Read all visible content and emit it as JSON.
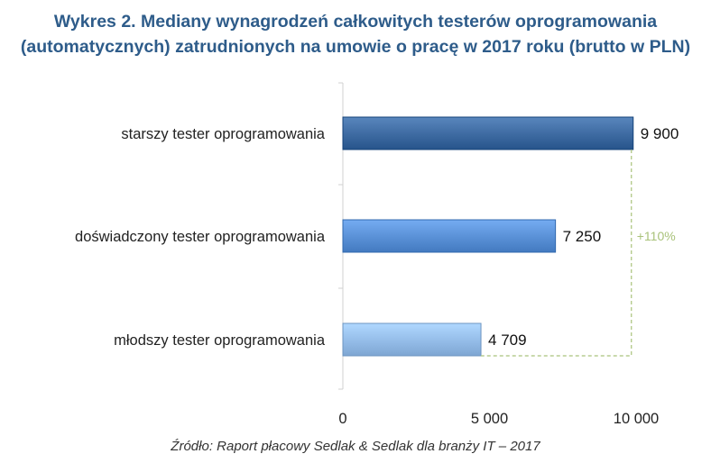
{
  "chart_data": {
    "type": "bar",
    "orientation": "horizontal",
    "title_line1": "Wykres 2. Mediany wynagrodzeń całkowitych testerów oprogramowania",
    "title_line2": "(automatycznych) zatrudnionych na umowie o pracę w 2017 roku (brutto w PLN)",
    "categories": [
      "starszy tester oprogramowania",
      "doświadczony tester oprogramowania",
      "młodszy tester oprogramowania"
    ],
    "values": [
      9900,
      7250,
      4709
    ],
    "value_labels": [
      "9 900",
      "7 250",
      "4 709"
    ],
    "bar_colors": [
      "#3d6aa1",
      "#5990d6",
      "#94bce8"
    ],
    "xlim": [
      0,
      10000
    ],
    "x_ticks": [
      0,
      5000,
      10000
    ],
    "x_tick_labels": [
      "0",
      "5 000",
      "10 000"
    ],
    "grid": false,
    "annotation": {
      "text": "+110%",
      "from_category": "młodszy tester oprogramowania",
      "to_category": "starszy tester oprogramowania",
      "color": "#a9c27a"
    },
    "source": "Źródło: Raport płacowy Sedlak & Sedlak dla branży IT – 2017"
  }
}
